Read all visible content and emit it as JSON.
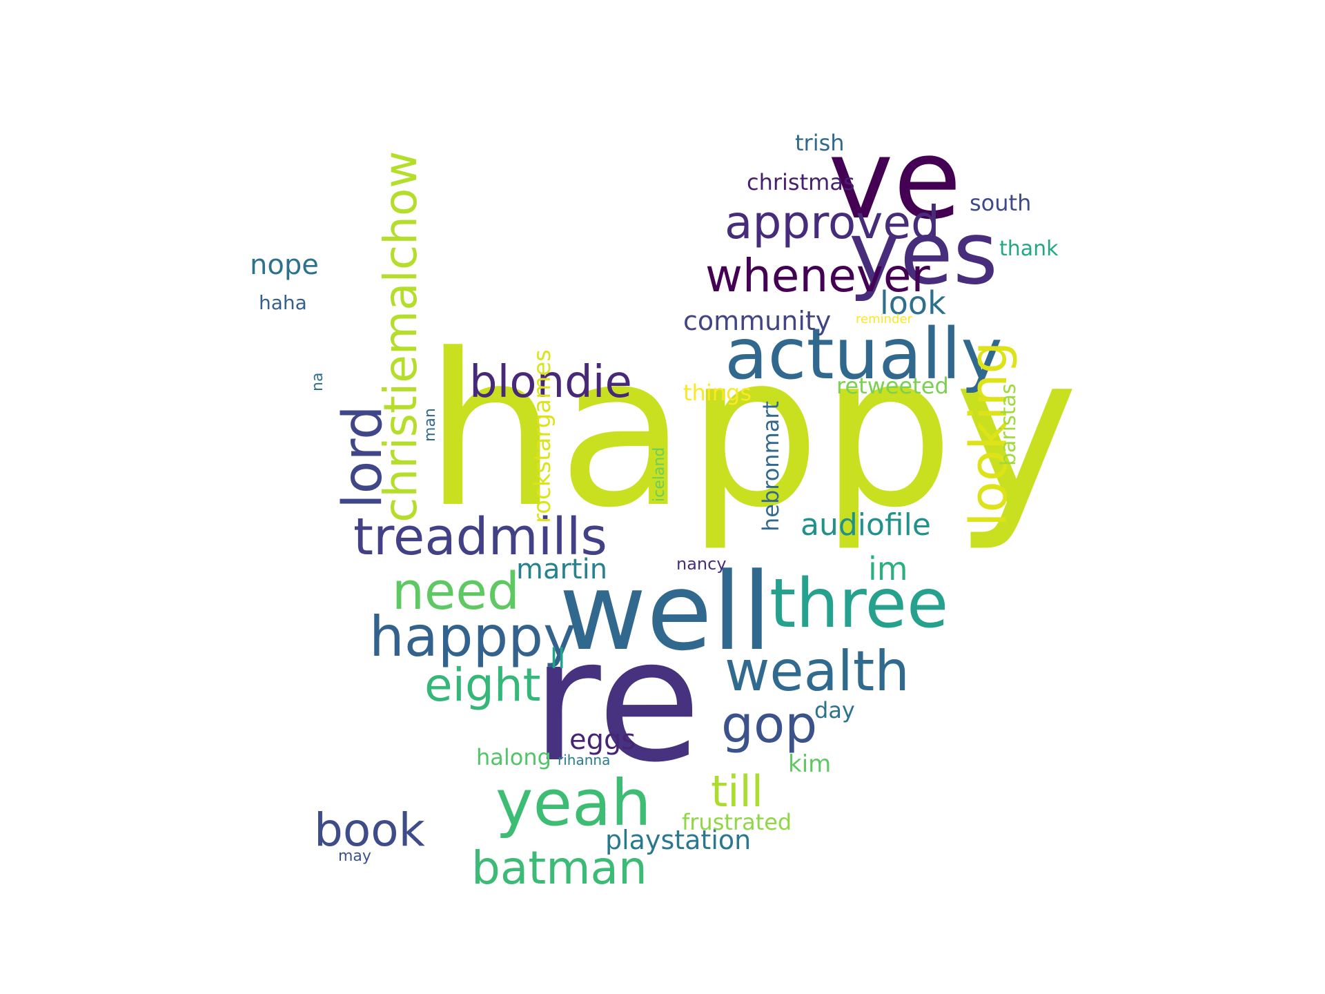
{
  "words": [
    {
      "text": "happy",
      "color": "#c8e020"
    },
    {
      "text": "re",
      "color": "#46327e"
    },
    {
      "text": "ve",
      "color": "#440154"
    },
    {
      "text": "well",
      "color": "#31688e"
    },
    {
      "text": "yes",
      "color": "#472d7b"
    },
    {
      "text": "actually",
      "color": "#31688e"
    },
    {
      "text": "three",
      "color": "#25a18e"
    },
    {
      "text": "yeah",
      "color": "#3dbc74"
    },
    {
      "text": "happpy",
      "color": "#33638d"
    },
    {
      "text": "wealth",
      "color": "#306a8e"
    },
    {
      "text": "treadmills",
      "color": "#424086"
    },
    {
      "text": "need",
      "color": "#5ec962"
    },
    {
      "text": "gop",
      "color": "#3b528b"
    },
    {
      "text": "blondie",
      "color": "#482878"
    },
    {
      "text": "approved",
      "color": "#472c7a"
    },
    {
      "text": "whenever",
      "color": "#440154"
    },
    {
      "text": "book",
      "color": "#3e4c8a"
    },
    {
      "text": "eight",
      "color": "#35b779"
    },
    {
      "text": "batman",
      "color": "#3bbb75"
    },
    {
      "text": "till",
      "color": "#addc30"
    },
    {
      "text": "look",
      "color": "#2d708e"
    },
    {
      "text": "im",
      "color": "#2ab07f"
    },
    {
      "text": "audiofile",
      "color": "#21918c"
    },
    {
      "text": "martin",
      "color": "#26828e"
    },
    {
      "text": "ll",
      "color": "#20a386"
    },
    {
      "text": "nope",
      "color": "#2c728e"
    },
    {
      "text": "community",
      "color": "#414487"
    },
    {
      "text": "christmas",
      "color": "#481f70"
    },
    {
      "text": "trish",
      "color": "#31688e"
    },
    {
      "text": "south",
      "color": "#3e4989"
    },
    {
      "text": "thank",
      "color": "#22a884"
    },
    {
      "text": "retweeted",
      "color": "#7ad151"
    },
    {
      "text": "things",
      "color": "#fde725"
    },
    {
      "text": "eggs",
      "color": "#482475"
    },
    {
      "text": "playstation",
      "color": "#2a788e"
    },
    {
      "text": "frustrated",
      "color": "#8fd744"
    },
    {
      "text": "day",
      "color": "#2c728e"
    },
    {
      "text": "kim",
      "color": "#5ec962"
    },
    {
      "text": "halong",
      "color": "#52c569"
    },
    {
      "text": "nancy",
      "color": "#472d7b"
    },
    {
      "text": "haha",
      "color": "#355f8d"
    },
    {
      "text": "may",
      "color": "#3b528b"
    },
    {
      "text": "rihanna",
      "color": "#287c8e"
    },
    {
      "text": "reminder",
      "color": "#fde725"
    },
    {
      "text": "lord",
      "color": "#3f4788"
    },
    {
      "text": "christiemalchow",
      "color": "#b5de2b"
    },
    {
      "text": "looking",
      "color": "#dde318"
    },
    {
      "text": "rockstargames",
      "color": "#dde318"
    },
    {
      "text": "hebronmart",
      "color": "#31688e"
    },
    {
      "text": "baristas",
      "color": "#9fda3a"
    },
    {
      "text": "iceland",
      "color": "#6ccd5a"
    },
    {
      "text": "man",
      "color": "#31688e"
    },
    {
      "text": "na",
      "color": "#2c728e"
    }
  ]
}
